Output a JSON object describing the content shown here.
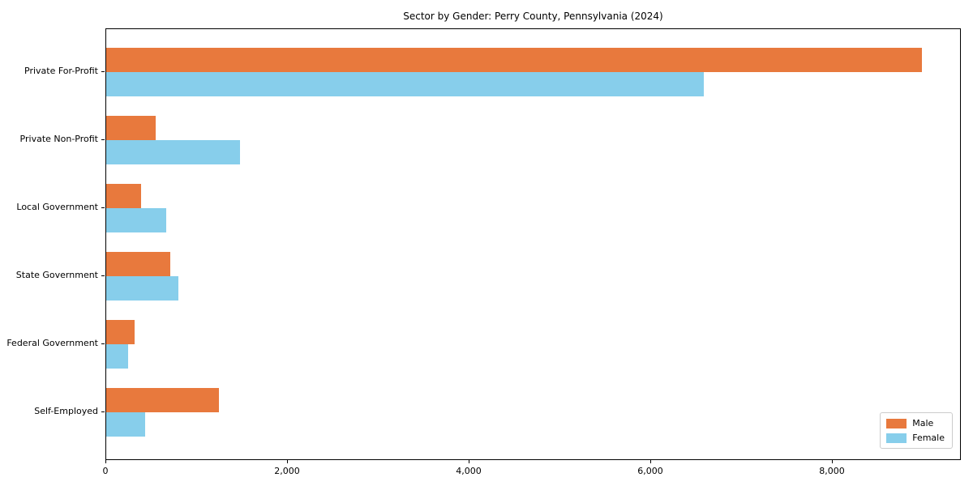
{
  "chart_data": {
    "type": "bar",
    "orientation": "horizontal",
    "title": "Sector by Gender: Perry County, Pennsylvania (2024)",
    "categories": [
      "Private For-Profit",
      "Private Non-Profit",
      "Local Government",
      "State Government",
      "Federal Government",
      "Self-Employed"
    ],
    "series": [
      {
        "name": "Male",
        "color": "#e8793d",
        "values": [
          8980,
          545,
          385,
          705,
          310,
          1240
        ]
      },
      {
        "name": "Female",
        "color": "#87ceeb",
        "values": [
          6580,
          1470,
          660,
          795,
          240,
          430
        ]
      }
    ],
    "xlim": [
      0,
      9420
    ],
    "xticks": [
      0,
      2000,
      4000,
      6000,
      8000
    ],
    "xtick_labels": [
      "0",
      "2,000",
      "4,000",
      "6,000",
      "8,000"
    ],
    "xlabel": "",
    "ylabel": "",
    "grid": false,
    "legend_position": "lower right",
    "background_color": "#ffffff",
    "axis_color": "#000000"
  }
}
